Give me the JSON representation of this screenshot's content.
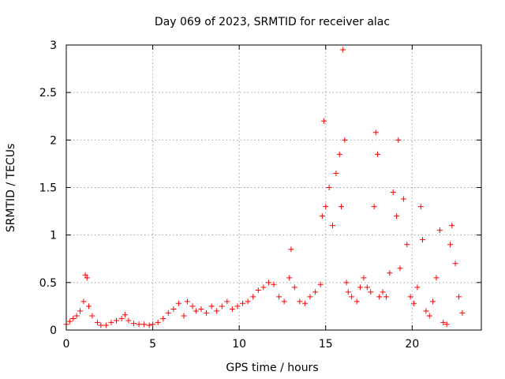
{
  "chart_data": {
    "type": "scatter",
    "title": "Day 069 of 2023, SRMTID for receiver alac",
    "xlabel": "GPS time / hours",
    "ylabel": "SRMTID / TECUs",
    "xlim": [
      0,
      24
    ],
    "ylim": [
      0,
      3
    ],
    "xticks": [
      0,
      5,
      10,
      15,
      20
    ],
    "xtick_labels": [
      "0",
      "5",
      "10",
      "15",
      "20"
    ],
    "yticks": [
      0,
      0.5,
      1,
      1.5,
      2,
      2.5,
      3
    ],
    "ytick_labels": [
      "0",
      "0.5",
      "1",
      "1.5",
      "2",
      "2.5",
      "3"
    ],
    "grid": true,
    "marker": "+",
    "color": "#ff0000",
    "series": [
      {
        "name": "alac",
        "x": [
          0.0,
          0.2,
          0.4,
          0.6,
          0.8,
          1.0,
          1.1,
          1.2,
          1.3,
          1.5,
          1.8,
          2.0,
          2.3,
          2.6,
          2.9,
          3.2,
          3.4,
          3.6,
          3.9,
          4.2,
          4.5,
          4.8,
          5.0,
          5.3,
          5.6,
          5.9,
          6.2,
          6.5,
          6.8,
          7.0,
          7.3,
          7.5,
          7.8,
          8.1,
          8.4,
          8.7,
          9.0,
          9.3,
          9.6,
          9.9,
          10.2,
          10.5,
          10.8,
          11.1,
          11.4,
          11.7,
          12.0,
          12.3,
          12.6,
          12.9,
          13.0,
          13.2,
          13.5,
          13.8,
          14.1,
          14.4,
          14.7,
          14.8,
          14.9,
          15.0,
          15.2,
          15.4,
          15.6,
          15.8,
          15.9,
          16.0,
          16.1,
          16.2,
          16.3,
          16.5,
          16.8,
          17.0,
          17.2,
          17.4,
          17.6,
          17.8,
          17.9,
          18.0,
          18.1,
          18.3,
          18.5,
          18.7,
          18.9,
          19.1,
          19.2,
          19.3,
          19.5,
          19.7,
          19.9,
          20.1,
          20.3,
          20.5,
          20.6,
          20.8,
          21.0,
          21.2,
          21.4,
          21.6,
          21.8,
          22.0,
          22.2,
          22.3,
          22.5,
          22.7,
          22.9
        ],
        "y": [
          0.06,
          0.09,
          0.12,
          0.15,
          0.2,
          0.3,
          0.58,
          0.55,
          0.25,
          0.15,
          0.08,
          0.05,
          0.05,
          0.08,
          0.1,
          0.12,
          0.16,
          0.1,
          0.07,
          0.06,
          0.06,
          0.05,
          0.06,
          0.08,
          0.12,
          0.18,
          0.22,
          0.28,
          0.15,
          0.3,
          0.25,
          0.2,
          0.22,
          0.18,
          0.25,
          0.2,
          0.25,
          0.3,
          0.22,
          0.25,
          0.28,
          0.3,
          0.35,
          0.42,
          0.45,
          0.5,
          0.48,
          0.35,
          0.3,
          0.55,
          0.85,
          0.45,
          0.3,
          0.28,
          0.35,
          0.4,
          0.48,
          1.2,
          2.2,
          1.3,
          1.5,
          1.1,
          1.65,
          1.85,
          1.3,
          2.95,
          2.0,
          0.5,
          0.4,
          0.35,
          0.3,
          0.45,
          0.55,
          0.45,
          0.4,
          1.3,
          2.08,
          1.85,
          0.35,
          0.4,
          0.35,
          0.6,
          1.45,
          1.2,
          2.0,
          0.65,
          1.38,
          0.9,
          0.35,
          0.28,
          0.45,
          1.3,
          0.95,
          0.2,
          0.15,
          0.3,
          0.55,
          1.05,
          0.08,
          0.06,
          0.9,
          1.1,
          0.7,
          0.35,
          0.18
        ]
      }
    ]
  }
}
